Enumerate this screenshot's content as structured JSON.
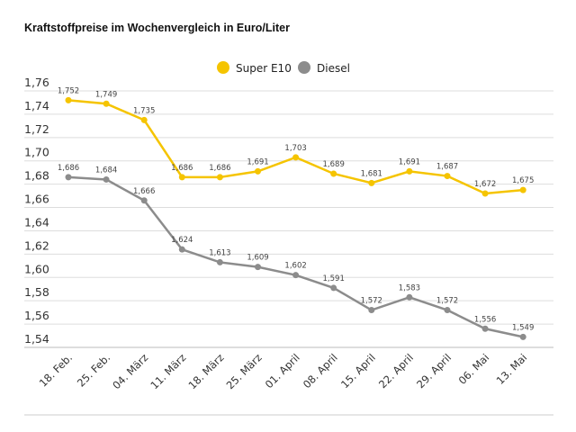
{
  "chart_data": {
    "type": "line",
    "title": "Kraftstoffpreise im Wochenvergleich in Euro/Liter",
    "categories": [
      "18. Feb.",
      "25. Feb.",
      "04. März",
      "11. März",
      "18. März",
      "25. März",
      "01. April",
      "08. April",
      "15. April",
      "22. April",
      "29. April",
      "06. Mai",
      "13. Mai"
    ],
    "series": [
      {
        "name": "Super E10",
        "color": "#f5c400",
        "values": [
          1.752,
          1.749,
          1.735,
          1.686,
          1.686,
          1.691,
          1.703,
          1.689,
          1.681,
          1.691,
          1.687,
          1.672,
          1.675
        ]
      },
      {
        "name": "Diesel",
        "color": "#8c8c8c",
        "values": [
          1.686,
          1.684,
          1.666,
          1.624,
          1.613,
          1.609,
          1.602,
          1.591,
          1.572,
          1.583,
          1.572,
          1.556,
          1.549
        ]
      }
    ],
    "ylim": [
      1.54,
      1.76
    ],
    "yticks": [
      1.54,
      1.56,
      1.58,
      1.6,
      1.62,
      1.64,
      1.66,
      1.68,
      1.7,
      1.72,
      1.74,
      1.76
    ],
    "grid": "horizontal",
    "legend": "top-center",
    "decimal_separator": ","
  }
}
